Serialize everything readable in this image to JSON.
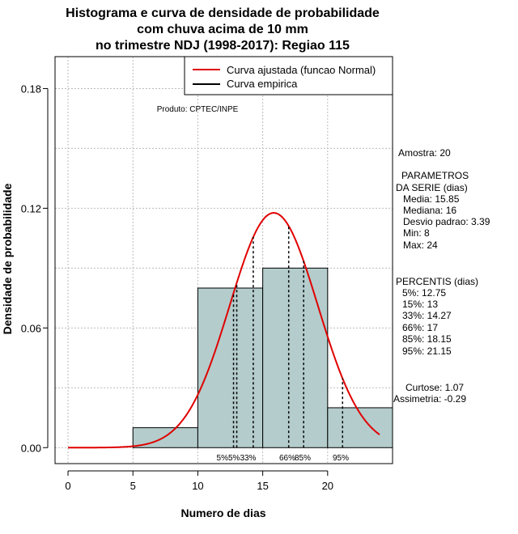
{
  "chart_data": {
    "type": "histogram",
    "title": [
      "Histograma e curva de densidade de probabilidade",
      "com chuva acima de 10 mm",
      "no trimestre NDJ (1998-2017): Regiao 115"
    ],
    "xlabel": "Numero de dias",
    "ylabel": "Densidade de probabilidade",
    "xlim": [
      -1,
      25
    ],
    "ylim": [
      -0.008,
      0.196
    ],
    "x_ticks": [
      0,
      5,
      10,
      15,
      20
    ],
    "y_ticks": [
      0.0,
      0.06,
      0.12,
      0.18
    ],
    "y_tick_labels": [
      "0.00",
      "0.06",
      "0.12",
      "0.18"
    ],
    "grid": true,
    "bins": [
      {
        "from": 5,
        "to": 10,
        "density": 0.01
      },
      {
        "from": 10,
        "to": 15,
        "density": 0.08
      },
      {
        "from": 15,
        "to": 20,
        "density": 0.09
      },
      {
        "from": 20,
        "to": 25,
        "density": 0.02
      }
    ],
    "normal_fit": {
      "mean": 15.85,
      "sd": 3.39,
      "x_range": [
        0,
        24
      ]
    },
    "legend": {
      "position": "top-right",
      "entries": [
        {
          "label": "Curva ajustada (funcao Normal)",
          "color": "#e00000"
        },
        {
          "label": "Curva empirica",
          "color": "#000000"
        }
      ]
    },
    "percentile_lines": [
      {
        "label": "5%",
        "x": 12.75
      },
      {
        "label": "15%",
        "x": 13
      },
      {
        "label": "33%",
        "x": 14.27
      },
      {
        "label": "66%",
        "x": 17
      },
      {
        "label": "85%",
        "x": 18.15
      },
      {
        "label": "95%",
        "x": 21.15
      }
    ],
    "percentile_marker_text": {
      "low_group": "5%5%33%",
      "p66": "66%",
      "p85": "85%",
      "p95": "95%"
    },
    "product_note": "Produto: CPTEC/INPE",
    "side_panel": {
      "sample": "Amostra: 20",
      "params_title_1": "PARAMETROS",
      "params_title_2": "DA SERIE (dias)",
      "params": [
        "Media: 15.85",
        "Mediana: 16",
        "Desvio padrao: 3.39",
        "Min: 8",
        "Max: 24"
      ],
      "percentis_title": "PERCENTIS (dias)",
      "percentis": [
        "5%: 12.75",
        "15%: 13",
        "33%: 14.27",
        "66%: 17",
        "85%: 18.15",
        "95%: 21.15"
      ],
      "curtose": "Curtose: 1.07",
      "assimetria": "Assimetria: -0.29"
    },
    "colors": {
      "bar_fill": "#b4cccc",
      "curve": "#e00000",
      "grid": "#bbbbbb"
    }
  }
}
